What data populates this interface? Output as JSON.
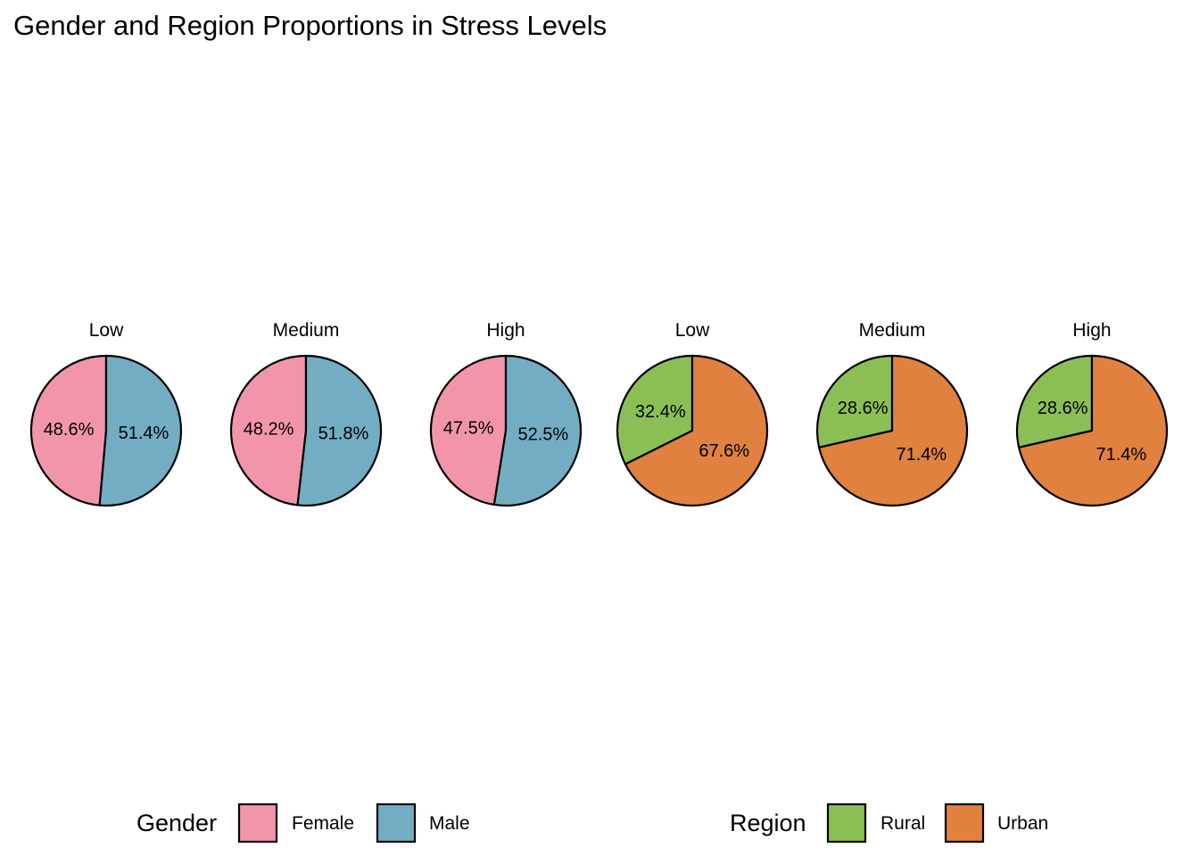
{
  "chart_data": {
    "type": "pie",
    "title": "Gender and Region Proportions in Stress Levels",
    "colors": {
      "Female": "#F295AB",
      "Male": "#72ADC4",
      "Rural": "#8BBF55",
      "Urban": "#E08140"
    },
    "panels": [
      {
        "group": "Gender",
        "label": "Low",
        "slices": [
          {
            "name": "Female",
            "value": 48.6,
            "label": "48.6%"
          },
          {
            "name": "Male",
            "value": 51.4,
            "label": "51.4%"
          }
        ]
      },
      {
        "group": "Gender",
        "label": "Medium",
        "slices": [
          {
            "name": "Female",
            "value": 48.2,
            "label": "48.2%"
          },
          {
            "name": "Male",
            "value": 51.8,
            "label": "51.8%"
          }
        ]
      },
      {
        "group": "Gender",
        "label": "High",
        "slices": [
          {
            "name": "Female",
            "value": 47.5,
            "label": "47.5%"
          },
          {
            "name": "Male",
            "value": 52.5,
            "label": "52.5%"
          }
        ]
      },
      {
        "group": "Region",
        "label": "Low",
        "slices": [
          {
            "name": "Rural",
            "value": 32.4,
            "label": "32.4%"
          },
          {
            "name": "Urban",
            "value": 67.6,
            "label": "67.6%"
          }
        ]
      },
      {
        "group": "Region",
        "label": "Medium",
        "slices": [
          {
            "name": "Rural",
            "value": 28.6,
            "label": "28.6%"
          },
          {
            "name": "Urban",
            "value": 71.4,
            "label": "71.4%"
          }
        ]
      },
      {
        "group": "Region",
        "label": "High",
        "slices": [
          {
            "name": "Rural",
            "value": 28.6,
            "label": "28.6%"
          },
          {
            "name": "Urban",
            "value": 71.4,
            "label": "71.4%"
          }
        ]
      }
    ],
    "legends": [
      {
        "title": "Gender",
        "items": [
          "Female",
          "Male"
        ]
      },
      {
        "title": "Region",
        "items": [
          "Rural",
          "Urban"
        ]
      }
    ],
    "legend_position": "bottom"
  }
}
